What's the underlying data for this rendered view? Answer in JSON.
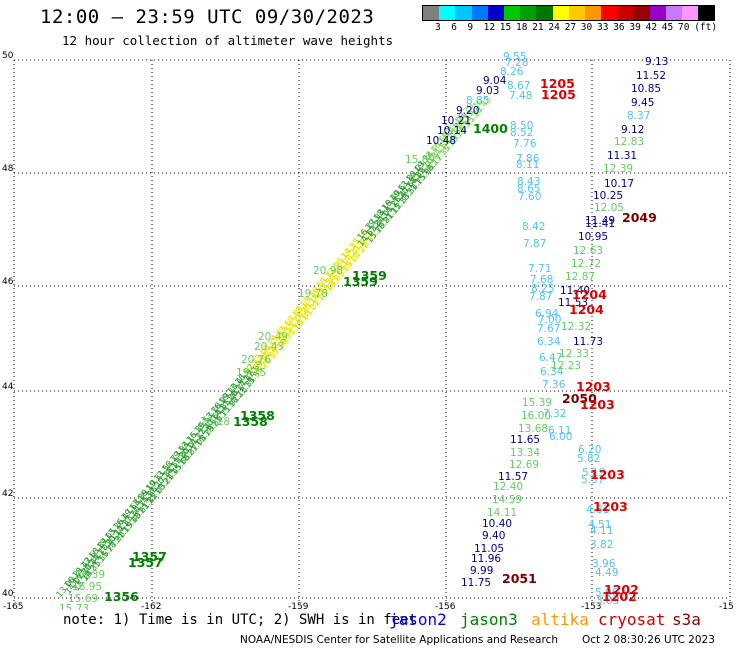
{
  "header": {
    "title": "12:00 – 23:59 UTC 09/30/2023",
    "subtitle": "12 hour collection of altimeter wave heights"
  },
  "colorbar": {
    "colors": [
      "#808080",
      "#00ffff",
      "#00c8ff",
      "#0078ff",
      "#0000c8",
      "#00c800",
      "#00a000",
      "#007800",
      "#ffff00",
      "#ffc800",
      "#ff9600",
      "#ff0000",
      "#c80000",
      "#960000",
      "#9600c8",
      "#c878ff",
      "#ff96ff",
      "#000000"
    ],
    "labels": [
      "3",
      "6",
      "9",
      "12",
      "15",
      "18",
      "21",
      "24",
      "27",
      "30",
      "33",
      "36",
      "39",
      "42",
      "45",
      "70",
      "(ft)"
    ]
  },
  "axes": {
    "y_labels": [
      "50",
      "48",
      "46",
      "44",
      "42",
      "40"
    ],
    "x_labels": [
      "-165",
      "-162",
      "-159",
      "-156",
      "-153",
      "-15"
    ]
  },
  "map_labels": [
    {
      "t": "9.55",
      "c": "#4fc3f7"
    },
    {
      "t": "7.28",
      "c": "#4fc3f7"
    },
    {
      "t": "8.26",
      "c": "#4fc3f7"
    },
    {
      "t": "9.04",
      "c": "#00008b"
    },
    {
      "t": "8.67",
      "c": "#4fc3f7"
    },
    {
      "t": "9.03",
      "c": "#00008b"
    },
    {
      "t": "7.48",
      "c": "#4fc3f7"
    },
    {
      "t": "8.85",
      "c": "#4fc3f7"
    },
    {
      "t": "9.20",
      "c": "#00008b"
    },
    {
      "t": "10.21",
      "c": "#00008b"
    },
    {
      "t": "10.14",
      "c": "#00008b"
    },
    {
      "t": "10.48",
      "c": "#00008b"
    },
    {
      "t": "8.50",
      "c": "#4fc3f7"
    },
    {
      "t": "8.52",
      "c": "#4fc3f7"
    },
    {
      "t": "7.76",
      "c": "#4fc3f7"
    },
    {
      "t": "7.86",
      "c": "#4fc3f7"
    },
    {
      "t": "8.11",
      "c": "#4fc3f7"
    },
    {
      "t": "8.43",
      "c": "#4fc3f7"
    },
    {
      "t": "8.65",
      "c": "#4fc3f7"
    },
    {
      "t": "7.60",
      "c": "#4fc3f7"
    },
    {
      "t": "8.42",
      "c": "#4fc3f7"
    },
    {
      "t": "7.87",
      "c": "#4fc3f7"
    },
    {
      "t": "7.71",
      "c": "#4fc3f7"
    },
    {
      "t": "7.68",
      "c": "#4fc3f7"
    },
    {
      "t": "8.25",
      "c": "#4fc3f7"
    },
    {
      "t": "7.87",
      "c": "#4fc3f7"
    },
    {
      "t": "6.94",
      "c": "#4fc3f7"
    },
    {
      "t": "7.00",
      "c": "#4fc3f7"
    },
    {
      "t": "7.67",
      "c": "#4fc3f7"
    },
    {
      "t": "6.34",
      "c": "#4fc3f7"
    },
    {
      "t": "6.47",
      "c": "#4fc3f7"
    },
    {
      "t": "6.34",
      "c": "#4fc3f7"
    },
    {
      "t": "7.36",
      "c": "#4fc3f7"
    },
    {
      "t": "7.32",
      "c": "#4fc3f7"
    },
    {
      "t": "6.11",
      "c": "#4fc3f7"
    },
    {
      "t": "6.00",
      "c": "#4fc3f7"
    },
    {
      "t": "6.20",
      "c": "#4fc3f7"
    },
    {
      "t": "5.82",
      "c": "#4fc3f7"
    },
    {
      "t": "5.19",
      "c": "#4fc3f7"
    },
    {
      "t": "5.37",
      "c": "#4fc3f7"
    },
    {
      "t": "4.81",
      "c": "#4fc3f7"
    },
    {
      "t": "4.51",
      "c": "#4fc3f7"
    },
    {
      "t": "4.11",
      "c": "#4fc3f7"
    },
    {
      "t": "3.82",
      "c": "#4fc3f7"
    },
    {
      "t": "3.96",
      "c": "#4fc3f7"
    },
    {
      "t": "4.49",
      "c": "#4fc3f7"
    },
    {
      "t": "5.06",
      "c": "#4fc3f7"
    },
    {
      "t": "3.03",
      "c": "#4fc3f7"
    },
    {
      "t": "9.13",
      "c": "#00008b"
    },
    {
      "t": "11.52",
      "c": "#00008b"
    },
    {
      "t": "10.85",
      "c": "#00008b"
    },
    {
      "t": "9.45",
      "c": "#00008b"
    },
    {
      "t": "8.37",
      "c": "#4fc3f7"
    },
    {
      "t": "9.12",
      "c": "#00008b"
    },
    {
      "t": "12.83",
      "c": "#66cc66"
    },
    {
      "t": "11.31",
      "c": "#00008b"
    },
    {
      "t": "12.39",
      "c": "#66cc66"
    },
    {
      "t": "10.17",
      "c": "#00008b"
    },
    {
      "t": "10.25",
      "c": "#00008b"
    },
    {
      "t": "12.05",
      "c": "#66cc66"
    },
    {
      "t": "11.49",
      "c": "#00008b"
    },
    {
      "t": "11.41",
      "c": "#00008b"
    },
    {
      "t": "10.95",
      "c": "#00008b"
    },
    {
      "t": "12.63",
      "c": "#66cc66"
    },
    {
      "t": "12.72",
      "c": "#66cc66"
    },
    {
      "t": "12.87",
      "c": "#66cc66"
    },
    {
      "t": "11.40",
      "c": "#00008b"
    },
    {
      "t": "11.53",
      "c": "#00008b"
    },
    {
      "t": "12.32",
      "c": "#66cc66"
    },
    {
      "t": "11.73",
      "c": "#00008b"
    },
    {
      "t": "12.33",
      "c": "#66cc66"
    },
    {
      "t": "12.23",
      "c": "#66cc66"
    },
    {
      "t": "15.39",
      "c": "#66cc66"
    },
    {
      "t": "16.00",
      "c": "#66cc66"
    },
    {
      "t": "13.68",
      "c": "#66cc66"
    },
    {
      "t": "11.65",
      "c": "#00008b"
    },
    {
      "t": "13.34",
      "c": "#66cc66"
    },
    {
      "t": "12.69",
      "c": "#66cc66"
    },
    {
      "t": "11.57",
      "c": "#00008b"
    },
    {
      "t": "12.40",
      "c": "#66cc66"
    },
    {
      "t": "14.59",
      "c": "#66cc66"
    },
    {
      "t": "14.11",
      "c": "#66cc66"
    },
    {
      "t": "10.40",
      "c": "#00008b"
    },
    {
      "t": "9.40",
      "c": "#00008b"
    },
    {
      "t": "11.05",
      "c": "#00008b"
    },
    {
      "t": "11.96",
      "c": "#00008b"
    },
    {
      "t": "9.99",
      "c": "#00008b"
    },
    {
      "t": "11.75",
      "c": "#00008b"
    },
    {
      "t": "15.89",
      "c": "#66cc66"
    },
    {
      "t": "20.98",
      "c": "#66cc66"
    },
    {
      "t": "19.78",
      "c": "#66cc66"
    },
    {
      "t": "20.49",
      "c": "#66cc66"
    },
    {
      "t": "20.43",
      "c": "#66cc66"
    },
    {
      "t": "20.76",
      "c": "#66cc66"
    },
    {
      "t": "19.75",
      "c": "#66cc66"
    },
    {
      "t": "20.18",
      "c": "#66cc66"
    },
    {
      "t": "16.39",
      "c": "#66cc66"
    },
    {
      "t": "16.95",
      "c": "#66cc66"
    },
    {
      "t": "15.69",
      "c": "#66cc66"
    },
    {
      "t": "15.73",
      "c": "#66cc66"
    }
  ],
  "time_labels": [
    {
      "t": "1205",
      "c": "#e00000"
    },
    {
      "t": "1205",
      "c": "#e00000"
    },
    {
      "t": "1400",
      "c": "#008000"
    },
    {
      "t": "2049",
      "c": "#7a0000"
    },
    {
      "t": "1359",
      "c": "#008000"
    },
    {
      "t": "1359",
      "c": "#008000"
    },
    {
      "t": "1204",
      "c": "#e00000"
    },
    {
      "t": "1204",
      "c": "#e00000"
    },
    {
      "t": "1203",
      "c": "#e00000"
    },
    {
      "t": "2050",
      "c": "#7a0000"
    },
    {
      "t": "1203",
      "c": "#e00000"
    },
    {
      "t": "1358",
      "c": "#008000"
    },
    {
      "t": "1358",
      "c": "#008000"
    },
    {
      "t": "1203",
      "c": "#e00000"
    },
    {
      "t": "1203",
      "c": "#e00000"
    },
    {
      "t": "1357",
      "c": "#008000"
    },
    {
      "t": "1357",
      "c": "#008000"
    },
    {
      "t": "2051",
      "c": "#7a0000"
    },
    {
      "t": "1356",
      "c": "#008000"
    },
    {
      "t": "1202",
      "c": "#e00000"
    },
    {
      "t": "1202",
      "c": "#e00000"
    }
  ],
  "legend": {
    "note": "note: 1) Time is in UTC; 2) SWH is in feet",
    "satellites": [
      {
        "name": "jason2",
        "color": "#0000ff"
      },
      {
        "name": "jason3",
        "color": "#008000"
      },
      {
        "name": "altika",
        "color": "#ff9900"
      },
      {
        "name": "cryosat",
        "color": "#cc0000"
      },
      {
        "name": "s3a",
        "color": "#8b0000"
      }
    ]
  },
  "footer": {
    "org": "NOAA/NESDIS Center for Satellite Applications and Research",
    "timestamp": "Oct  2 08:30:26 UTC 2023"
  }
}
